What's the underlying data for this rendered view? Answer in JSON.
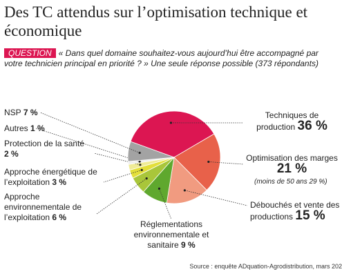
{
  "chart_data": {
    "type": "pie",
    "title": "Des TC attendus sur l’optimisation technique et économique",
    "question_tag": "QUESTION",
    "question": "« Dans quel domaine souhaitez-vous aujourd’hui être accompagné par votre technicien principal en priorité ? » Une seule réponse possible (373 répondants)",
    "categories": [
      "Techniques de production",
      "Optimisation des marges",
      "Débouchés et vente des productions",
      "Réglementations environnementale et sanitaire",
      "Approche environnementale de l’exploitation",
      "Approche énergétique de l’exploitation",
      "Protection de la santé",
      "Autres",
      "NSP"
    ],
    "values": [
      36,
      21,
      15,
      9,
      6,
      3,
      2,
      1,
      7
    ],
    "value_labels": [
      "36 %",
      "21 %",
      "15 %",
      "9 %",
      "6 %",
      "3 %",
      "2 %",
      "1 %",
      "7 %"
    ],
    "colors": [
      "#dc1652",
      "#e8614a",
      "#f19b80",
      "#5fa82e",
      "#a9c63a",
      "#e3df3a",
      "#efeb96",
      "#eeeeee",
      "#a3a3a3"
    ],
    "annotation": "(moins de 50 ans 29 %)",
    "source": "Source : enquête ADquation-Agrodistribution, mars 202"
  }
}
